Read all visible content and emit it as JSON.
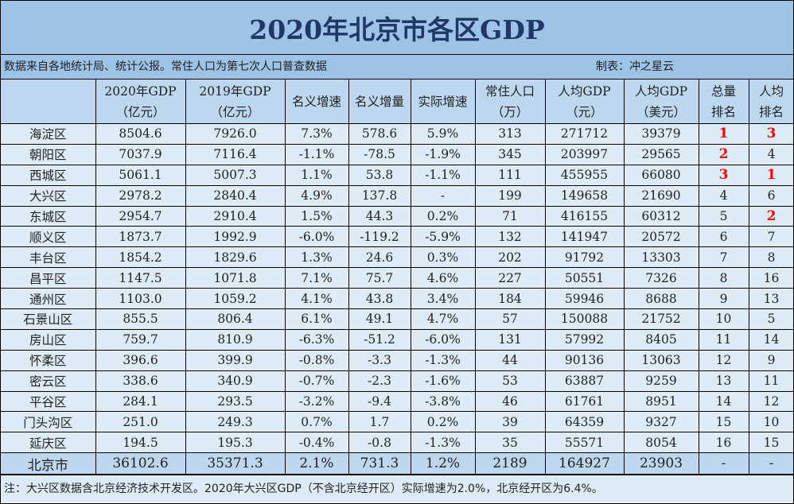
{
  "title": "2020年北京市各区GDP",
  "source_note": "数据来自各地统计局、统计公报。常住人口为第七次人口普查数据",
  "author": "制表：冲之星云",
  "headers": [
    [
      "",
      ""
    ],
    [
      "2020年GDP",
      "（亿元）"
    ],
    [
      "2019年GDP",
      "（亿元）"
    ],
    [
      "名义增速",
      ""
    ],
    [
      "名义增量",
      ""
    ],
    [
      "实际增速",
      ""
    ],
    [
      "常住人口",
      "（万）"
    ],
    [
      "人均GDP",
      "（元）"
    ],
    [
      "人均GDP",
      "（美元）"
    ],
    [
      "总量",
      "排名"
    ],
    [
      "人均",
      "排名"
    ]
  ],
  "rows": [
    [
      "海淀区",
      "8504.6",
      "7926.0",
      "7.3%",
      "578.6",
      "5.9%",
      "313",
      "271712",
      "39379",
      "1",
      "3"
    ],
    [
      "朝阳区",
      "7037.9",
      "7116.4",
      "-1.1%",
      "-78.5",
      "-1.9%",
      "345",
      "203997",
      "29565",
      "2",
      "4"
    ],
    [
      "西城区",
      "5061.1",
      "5007.3",
      "1.1%",
      "53.8",
      "-1.1%",
      "111",
      "455955",
      "66080",
      "3",
      "1"
    ],
    [
      "大兴区",
      "2978.2",
      "2840.4",
      "4.9%",
      "137.8",
      "-",
      "199",
      "149658",
      "21690",
      "4",
      "6"
    ],
    [
      "东城区",
      "2954.7",
      "2910.4",
      "1.5%",
      "44.3",
      "0.2%",
      "71",
      "416155",
      "60312",
      "5",
      "2"
    ],
    [
      "顺义区",
      "1873.7",
      "1992.9",
      "-6.0%",
      "-119.2",
      "-5.9%",
      "132",
      "141947",
      "20572",
      "6",
      "7"
    ],
    [
      "丰台区",
      "1854.2",
      "1829.6",
      "1.3%",
      "24.6",
      "0.3%",
      "202",
      "91792",
      "13303",
      "7",
      "8"
    ],
    [
      "昌平区",
      "1147.5",
      "1071.8",
      "7.1%",
      "75.7",
      "4.6%",
      "227",
      "50551",
      "7326",
      "8",
      "16"
    ],
    [
      "通州区",
      "1103.0",
      "1059.2",
      "4.1%",
      "43.8",
      "3.4%",
      "184",
      "59946",
      "8688",
      "9",
      "13"
    ],
    [
      "石景山区",
      "855.5",
      "806.4",
      "6.1%",
      "49.1",
      "4.7%",
      "57",
      "150088",
      "21752",
      "10",
      "5"
    ],
    [
      "房山区",
      "759.7",
      "810.9",
      "-6.3%",
      "-51.2",
      "-6.0%",
      "131",
      "57992",
      "8405",
      "11",
      "14"
    ],
    [
      "怀柔区",
      "396.6",
      "399.9",
      "-0.8%",
      "-3.3",
      "-1.3%",
      "44",
      "90136",
      "13063",
      "12",
      "9"
    ],
    [
      "密云区",
      "338.6",
      "340.9",
      "-0.7%",
      "-2.3",
      "-1.6%",
      "53",
      "63887",
      "9259",
      "13",
      "11"
    ],
    [
      "平谷区",
      "284.1",
      "293.5",
      "-3.2%",
      "-9.4",
      "-3.8%",
      "46",
      "61761",
      "8951",
      "14",
      "12"
    ],
    [
      "门头沟区",
      "251.0",
      "249.3",
      "0.7%",
      "1.7",
      "0.2%",
      "39",
      "64359",
      "9327",
      "15",
      "10"
    ],
    [
      "延庆区",
      "194.5",
      "195.3",
      "-0.4%",
      "-0.8",
      "-1.3%",
      "35",
      "55571",
      "8054",
      "16",
      "15"
    ]
  ],
  "total": [
    "北京市",
    "36102.6",
    "35371.3",
    "2.1%",
    "731.3",
    "1.2%",
    "2189",
    "164927",
    "23903",
    "-",
    "-"
  ],
  "footnote": "注：大兴区数据含北京经济技术开发区。2020年大兴区GDP（不含北京经开区）实际增速为2.0%，北京经开区为6.4%。",
  "colors": {
    "title_bg": "#9dc3e6",
    "header_bg": "#bdd7ee",
    "row_bg": "#ddebf7",
    "title_text": "#1f3864",
    "top3_rank": "#ff0000"
  }
}
